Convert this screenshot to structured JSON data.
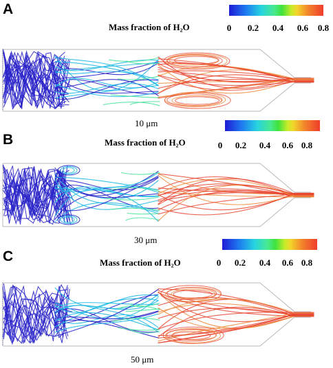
{
  "panels": [
    {
      "label": "A",
      "colorbar_title": "Mass fraction of H₂O",
      "ticks": [
        "0",
        "0.2",
        "0.4",
        "0.6",
        "0.8"
      ],
      "scale": "10 μm"
    },
    {
      "label": "B",
      "colorbar_title": "Mass fraction of H₂O",
      "ticks": [
        "0",
        "0.2",
        "0.4",
        "0.6",
        "0.8"
      ],
      "scale": "30 μm"
    },
    {
      "label": "C",
      "colorbar_title": "Mass fraction of H₂O",
      "ticks": [
        "0",
        "0.2",
        "0.4",
        "0.6",
        "0.8"
      ],
      "scale": "50 μm"
    }
  ],
  "colors": {
    "low": "#2a24c9",
    "low_mid": "#20b9e6",
    "mid": "#4fe3a0",
    "high_mid": "#ee8a3a",
    "high": "#e8432e",
    "wall": "#b7b7b7"
  }
}
